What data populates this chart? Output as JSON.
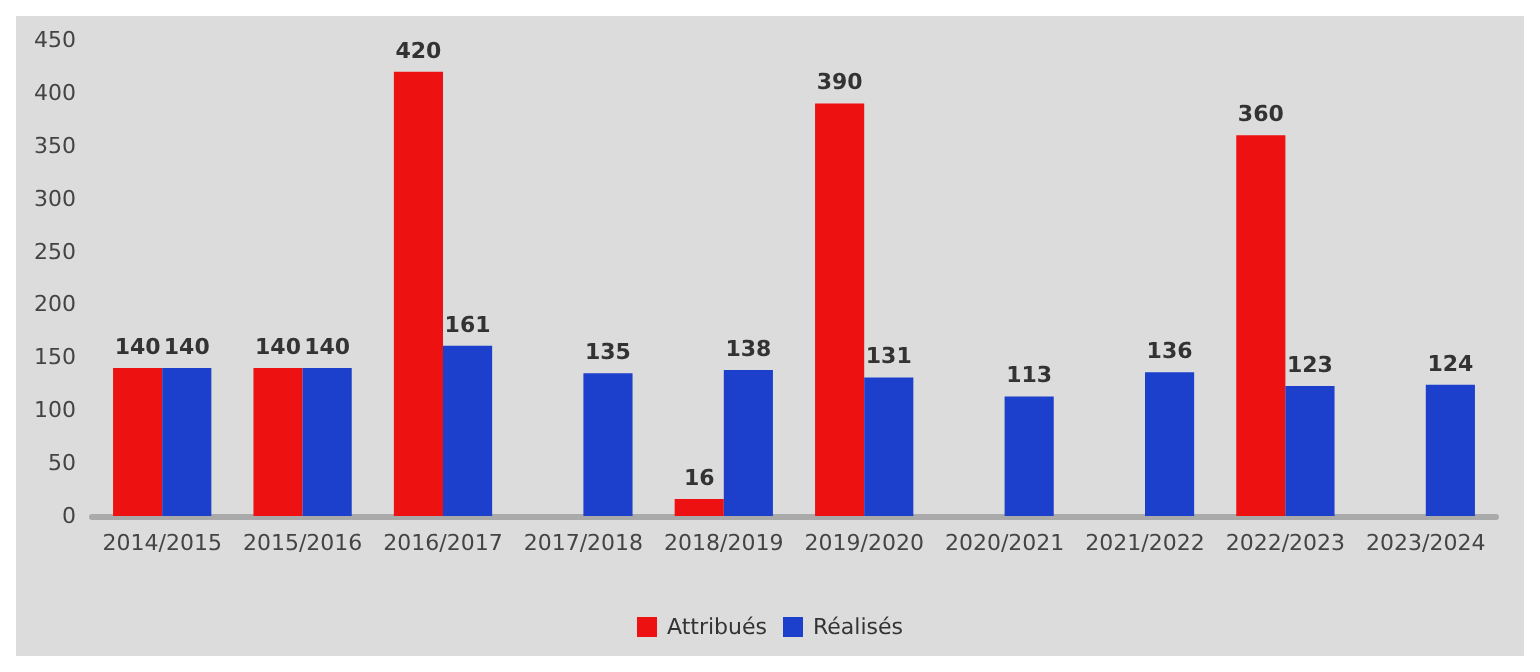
{
  "chart_data": {
    "type": "bar",
    "categories": [
      "2014/2015",
      "2015/2016",
      "2016/2017",
      "2017/2018",
      "2018/2019",
      "2019/2020",
      "2020/2021",
      "2021/2022",
      "2022/2023",
      "2023/2024"
    ],
    "series": [
      {
        "name": "Attribués",
        "color": "#ee1111",
        "values": [
          140,
          140,
          420,
          null,
          16,
          390,
          null,
          null,
          360,
          null
        ]
      },
      {
        "name": "Réalisés",
        "color": "#1c3fcc",
        "values": [
          140,
          140,
          161,
          135,
          138,
          131,
          113,
          136,
          123,
          124
        ]
      }
    ],
    "ylim": [
      0,
      450
    ],
    "yticks": [
      0,
      50,
      100,
      150,
      200,
      250,
      300,
      350,
      400,
      450
    ],
    "grid": false,
    "legend": "bottom",
    "data_labels": true
  }
}
